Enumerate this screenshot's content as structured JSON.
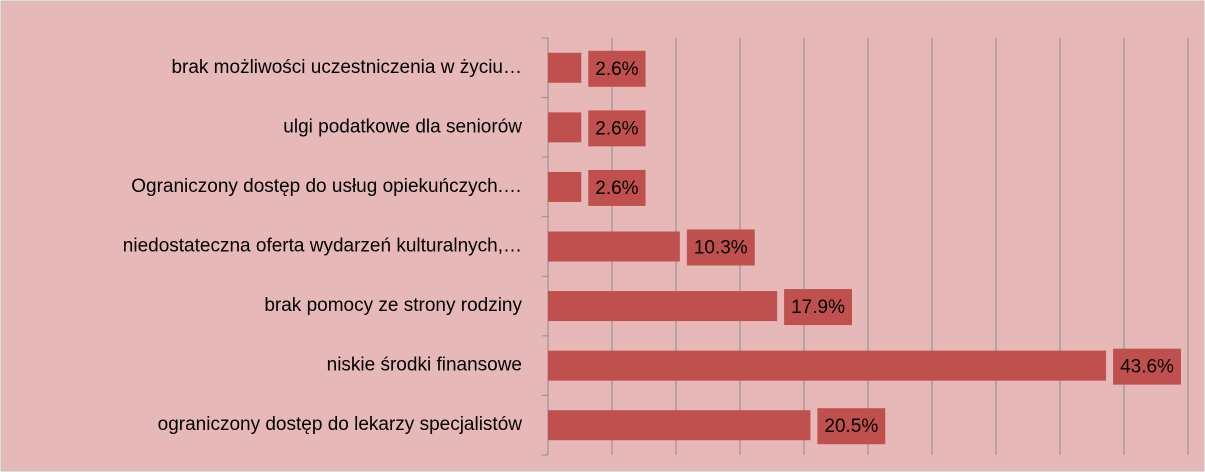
{
  "chart_data": {
    "type": "hbar",
    "categories": [
      "brak możliwości uczestniczenia w życiu…",
      "ulgi podatkowe dla seniorów",
      "Ograniczony dostęp do usług opiekuńczych.…",
      "niedostateczna oferta wydarzeń kulturalnych,…",
      "brak pomocy ze strony rodziny",
      "niskie środki finansowe",
      "ograniczony dostęp do lekarzy specjalistów"
    ],
    "values": [
      2.6,
      2.6,
      2.6,
      10.3,
      17.9,
      43.6,
      20.5
    ],
    "value_labels": [
      "2.6%",
      "2.6%",
      "2.6%",
      "10.3%",
      "17.9%",
      "43.6%",
      "20.5%"
    ],
    "color": "#c0504d",
    "xlim": [
      0,
      50
    ],
    "xticks": [
      0,
      5,
      10,
      15,
      20,
      25,
      30,
      35,
      40,
      45,
      50
    ],
    "grid": true
  }
}
